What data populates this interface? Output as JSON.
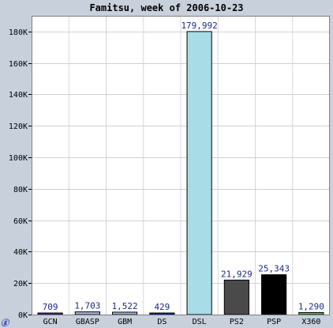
{
  "chart_data": {
    "type": "bar",
    "title": "Famitsu, week of 2006-10-23",
    "xlabel": "",
    "ylabel": "",
    "categories": [
      "GCN",
      "GBASP",
      "GBM",
      "DS",
      "DSL",
      "PS2",
      "PSP",
      "X360"
    ],
    "values": [
      709,
      1703,
      1522,
      429,
      179992,
      21929,
      25343,
      1290
    ],
    "value_labels": [
      "709",
      "1,703",
      "1,522",
      "429",
      "179,992",
      "21,929",
      "25,343",
      "1,290"
    ],
    "colors": [
      "#5a3aa8",
      "#aeb6d6",
      "#aeb6d6",
      "#1c2cc8",
      "#a8dce6",
      "#4a4a4a",
      "#000000",
      "#58c058"
    ],
    "ylim": [
      0,
      190000
    ],
    "yticks": [
      0,
      20000,
      40000,
      60000,
      80000,
      100000,
      120000,
      140000,
      160000,
      180000
    ],
    "ytick_labels": [
      "0K",
      "20K",
      "40K",
      "60K",
      "80K",
      "100K",
      "120K",
      "140K",
      "160K",
      "180K"
    ],
    "grid": true,
    "legend": "none"
  }
}
